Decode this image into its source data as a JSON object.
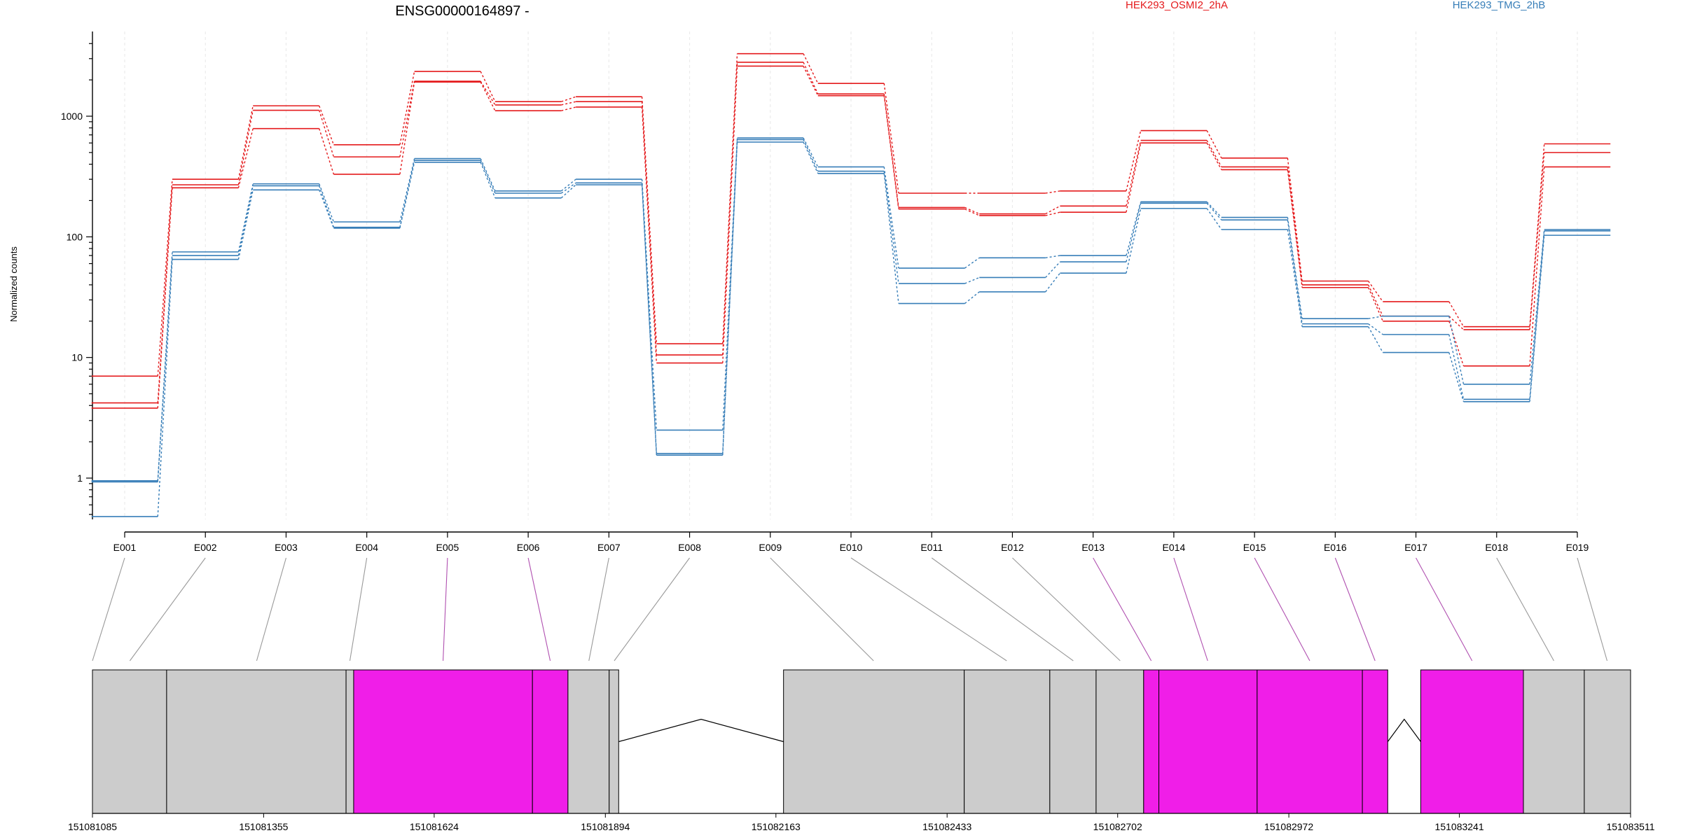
{
  "chart_data": {
    "type": "line",
    "title": "ENSG00000164897 -",
    "ylabel": "Normalized counts",
    "xlabel": "",
    "yscale": "log",
    "ylim": [
      0.5,
      4000
    ],
    "yticks": [
      1,
      10,
      100,
      1000
    ],
    "ytick_labels": [
      "1",
      "10",
      "100",
      "1000"
    ],
    "categories": [
      "E001",
      "E002",
      "E003",
      "E004",
      "E005",
      "E006",
      "E007",
      "E008",
      "E009",
      "E010",
      "E011",
      "E012",
      "E013",
      "E014",
      "E015",
      "E016",
      "E017",
      "E018",
      "E019"
    ],
    "legend": {
      "placement": "top-right",
      "entries": [
        {
          "label": "HEK293_OSMI2_2hA",
          "color": "#E41A1C"
        },
        {
          "label": "HEK293_TMG_2hB",
          "color": "#377EB8"
        }
      ]
    },
    "series": [
      {
        "group": "HEK293_OSMI2_2hA",
        "color": "#E41A1C",
        "values": [
          7,
          300,
          1220,
          580,
          2350,
          1320,
          1450,
          13,
          3300,
          1870,
          230,
          230,
          240,
          760,
          450,
          43,
          29,
          18,
          590
        ]
      },
      {
        "group": "HEK293_OSMI2_2hA",
        "color": "#E41A1C",
        "values": [
          4.2,
          270,
          1120,
          460,
          1950,
          1240,
          1320,
          10.5,
          2800,
          1530,
          175,
          155,
          180,
          630,
          380,
          40,
          22,
          17,
          500
        ]
      },
      {
        "group": "HEK293_OSMI2_2hA",
        "color": "#E41A1C",
        "values": [
          3.8,
          255,
          790,
          330,
          1920,
          1110,
          1190,
          9,
          2600,
          1480,
          170,
          150,
          160,
          600,
          360,
          38,
          20,
          8.5,
          380
        ]
      },
      {
        "group": "HEK293_TMG_2hB",
        "color": "#377EB8",
        "values": [
          0.95,
          75,
          275,
          133,
          445,
          240,
          300,
          2.5,
          660,
          380,
          55,
          67,
          70,
          195,
          145,
          21,
          22,
          6,
          115
        ]
      },
      {
        "group": "HEK293_TMG_2hB",
        "color": "#377EB8",
        "values": [
          0.93,
          70,
          265,
          120,
          430,
          230,
          280,
          1.6,
          640,
          350,
          41,
          46,
          62,
          190,
          138,
          19,
          15.5,
          4.5,
          112
        ]
      },
      {
        "group": "HEK293_TMG_2hB",
        "color": "#377EB8",
        "values": [
          0.48,
          65,
          245,
          118,
          415,
          210,
          270,
          1.55,
          610,
          335,
          28,
          35,
          50,
          172,
          115,
          18,
          11,
          4.3,
          103
        ]
      }
    ],
    "gene_model": {
      "genomic_ticks": [
        "151081085",
        "151081355",
        "151081624",
        "151081894",
        "151082163",
        "151082433",
        "151082702",
        "151082972",
        "151083241",
        "151083511"
      ],
      "genomic_range": [
        151081085,
        151083511
      ],
      "exon_bins": [
        {
          "start": 151081085,
          "end": 151081202,
          "color": "#CCCCCC"
        },
        {
          "start": 151081202,
          "end": 151081485,
          "color": "#CCCCCC"
        },
        {
          "start": 151081485,
          "end": 151081497,
          "color": "#CCCCCC"
        },
        {
          "start": 151081497,
          "end": 151081779,
          "color": "#F01EE8"
        },
        {
          "start": 151081779,
          "end": 151081835,
          "color": "#F01EE8"
        },
        {
          "start": 151081835,
          "end": 151081900,
          "color": "#CCCCCC"
        },
        {
          "start": 151081900,
          "end": 151081915,
          "color": "#CCCCCC"
        },
        {
          "start": 151082175,
          "end": 151082460,
          "color": "#CCCCCC"
        },
        {
          "start": 151082460,
          "end": 151082595,
          "color": "#CCCCCC"
        },
        {
          "start": 151082595,
          "end": 151082668,
          "color": "#CCCCCC"
        },
        {
          "start": 151082668,
          "end": 151082743,
          "color": "#CCCCCC"
        },
        {
          "start": 151082743,
          "end": 151082767,
          "color": "#F01EE8"
        },
        {
          "start": 151082767,
          "end": 151082922,
          "color": "#F01EE8"
        },
        {
          "start": 151082922,
          "end": 151083088,
          "color": "#F01EE8"
        },
        {
          "start": 151083088,
          "end": 151083128,
          "color": "#F01EE8"
        },
        {
          "start": 151083180,
          "end": 151083342,
          "color": "#F01EE8"
        },
        {
          "start": 151083342,
          "end": 151083438,
          "color": "#CCCCCC"
        },
        {
          "start": 151083438,
          "end": 151083511,
          "color": "#CCCCCC"
        }
      ],
      "introns": [
        {
          "start": 151081915,
          "end": 151082175
        },
        {
          "start": 151083128,
          "end": 151083180
        }
      ],
      "connectors": [
        {
          "exon": "E001",
          "pos": 151081085,
          "color": "#999999"
        },
        {
          "exon": "E002",
          "pos": 151081144,
          "color": "#999999"
        },
        {
          "exon": "E003",
          "pos": 151081344,
          "color": "#999999"
        },
        {
          "exon": "E004",
          "pos": 151081491,
          "color": "#999999"
        },
        {
          "exon": "E005",
          "pos": 151081638,
          "color": "#B050B0"
        },
        {
          "exon": "E006",
          "pos": 151081807,
          "color": "#B050B0"
        },
        {
          "exon": "E007",
          "pos": 151081868,
          "color": "#999999"
        },
        {
          "exon": "E008",
          "pos": 151081908,
          "color": "#999999"
        },
        {
          "exon": "E009",
          "pos": 151082317,
          "color": "#999999"
        },
        {
          "exon": "E010",
          "pos": 151082527,
          "color": "#999999"
        },
        {
          "exon": "E011",
          "pos": 151082632,
          "color": "#999999"
        },
        {
          "exon": "E012",
          "pos": 151082706,
          "color": "#999999"
        },
        {
          "exon": "E013",
          "pos": 151082755,
          "color": "#B050B0"
        },
        {
          "exon": "E014",
          "pos": 151082844,
          "color": "#B050B0"
        },
        {
          "exon": "E015",
          "pos": 151083005,
          "color": "#B050B0"
        },
        {
          "exon": "E016",
          "pos": 151083108,
          "color": "#B050B0"
        },
        {
          "exon": "E017",
          "pos": 151083261,
          "color": "#B050B0"
        },
        {
          "exon": "E018",
          "pos": 151083390,
          "color": "#999999"
        },
        {
          "exon": "E019",
          "pos": 151083474,
          "color": "#999999"
        }
      ]
    }
  }
}
